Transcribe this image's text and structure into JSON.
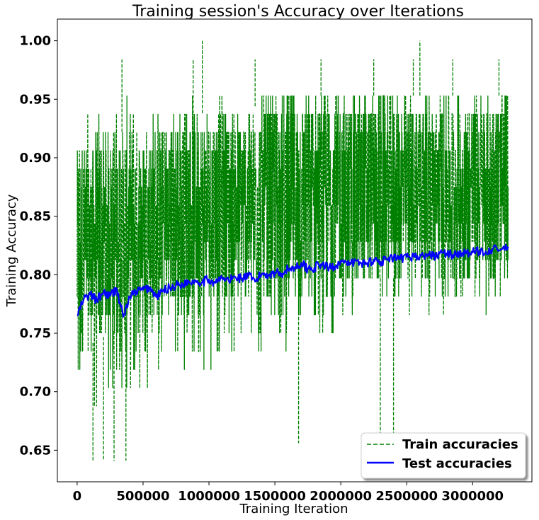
{
  "chart_data": {
    "type": "line",
    "title": "Training session's Accuracy over Iterations",
    "xlabel": "Training Iteration",
    "ylabel": "Training Accuracy",
    "xlim": [
      -150000,
      3450000
    ],
    "ylim": [
      0.623,
      1.0185
    ],
    "x_ticks": [
      0,
      500000,
      1000000,
      1500000,
      2000000,
      2500000,
      3000000
    ],
    "x_tick_labels": [
      "0",
      "500000",
      "1000000",
      "1500000",
      "2000000",
      "2500000",
      "3000000"
    ],
    "y_ticks": [
      0.65,
      0.7,
      0.75,
      0.8,
      0.85,
      0.9,
      0.95,
      1.0
    ],
    "y_tick_labels": [
      "0.65",
      "0.70",
      "0.75",
      "0.80",
      "0.85",
      "0.90",
      "0.95",
      "1.00"
    ],
    "grid": false,
    "legend_position": "lower-right",
    "series": [
      {
        "name": "Train accuracies",
        "color": "#008000",
        "style": "dashed",
        "x_range": [
          0,
          3270000
        ],
        "envelope_x": [
          0,
          250000,
          500000,
          750000,
          1000000,
          1250000,
          1500000,
          1750000,
          2000000,
          2250000,
          2500000,
          2750000,
          3000000,
          3270000
        ],
        "envelope_upper": [
          0.938,
          0.953,
          0.953,
          0.953,
          0.953,
          0.953,
          0.953,
          0.953,
          0.953,
          0.953,
          0.953,
          0.953,
          0.953,
          0.953
        ],
        "envelope_lower": [
          0.672,
          0.688,
          0.703,
          0.719,
          0.719,
          0.734,
          0.734,
          0.75,
          0.75,
          0.766,
          0.766,
          0.766,
          0.766,
          0.781
        ],
        "dense_upper": [
          0.906,
          0.922,
          0.922,
          0.938,
          0.938,
          0.938,
          0.953,
          0.953,
          0.953,
          0.953,
          0.953,
          0.953,
          0.953,
          0.953
        ],
        "dense_lower": [
          0.734,
          0.75,
          0.766,
          0.766,
          0.781,
          0.781,
          0.781,
          0.781,
          0.781,
          0.797,
          0.797,
          0.797,
          0.797,
          0.797
        ],
        "outlier_peaks": [
          {
            "x": 340000,
            "y": 0.984
          },
          {
            "x": 880000,
            "y": 0.984
          },
          {
            "x": 950000,
            "y": 1.0
          },
          {
            "x": 1350000,
            "y": 0.984
          },
          {
            "x": 1850000,
            "y": 0.984
          },
          {
            "x": 2250000,
            "y": 0.984
          },
          {
            "x": 2550000,
            "y": 0.984
          },
          {
            "x": 2600000,
            "y": 1.0
          },
          {
            "x": 2850000,
            "y": 0.984
          },
          {
            "x": 3200000,
            "y": 0.984
          }
        ],
        "outlier_troughs": [
          {
            "x": 120000,
            "y": 0.641
          },
          {
            "x": 200000,
            "y": 0.641
          },
          {
            "x": 280000,
            "y": 0.641
          },
          {
            "x": 370000,
            "y": 0.641
          },
          {
            "x": 1680000,
            "y": 0.656
          },
          {
            "x": 2300000,
            "y": 0.641
          },
          {
            "x": 2400000,
            "y": 0.656
          }
        ]
      },
      {
        "name": "Test accuracies",
        "color": "#0000ff",
        "style": "solid",
        "x": [
          0,
          50000,
          100000,
          150000,
          200000,
          250000,
          300000,
          350000,
          400000,
          450000,
          500000,
          550000,
          600000,
          650000,
          700000,
          750000,
          800000,
          850000,
          900000,
          950000,
          1000000,
          1050000,
          1100000,
          1150000,
          1200000,
          1250000,
          1300000,
          1350000,
          1400000,
          1450000,
          1500000,
          1550000,
          1600000,
          1650000,
          1700000,
          1750000,
          1800000,
          1850000,
          1900000,
          1950000,
          2000000,
          2050000,
          2100000,
          2150000,
          2200000,
          2250000,
          2300000,
          2350000,
          2400000,
          2450000,
          2500000,
          2550000,
          2600000,
          2650000,
          2700000,
          2750000,
          2800000,
          2850000,
          2900000,
          2950000,
          3000000,
          3050000,
          3100000,
          3150000,
          3200000,
          3270000
        ],
        "y": [
          0.765,
          0.779,
          0.783,
          0.778,
          0.785,
          0.782,
          0.788,
          0.764,
          0.781,
          0.786,
          0.787,
          0.789,
          0.781,
          0.786,
          0.789,
          0.791,
          0.792,
          0.794,
          0.795,
          0.794,
          0.796,
          0.793,
          0.797,
          0.795,
          0.798,
          0.797,
          0.799,
          0.794,
          0.801,
          0.8,
          0.802,
          0.801,
          0.805,
          0.806,
          0.81,
          0.805,
          0.806,
          0.809,
          0.806,
          0.807,
          0.812,
          0.808,
          0.811,
          0.81,
          0.81,
          0.813,
          0.811,
          0.813,
          0.814,
          0.813,
          0.815,
          0.816,
          0.815,
          0.817,
          0.816,
          0.818,
          0.818,
          0.817,
          0.819,
          0.818,
          0.819,
          0.82,
          0.82,
          0.822,
          0.821,
          0.824
        ]
      }
    ]
  }
}
